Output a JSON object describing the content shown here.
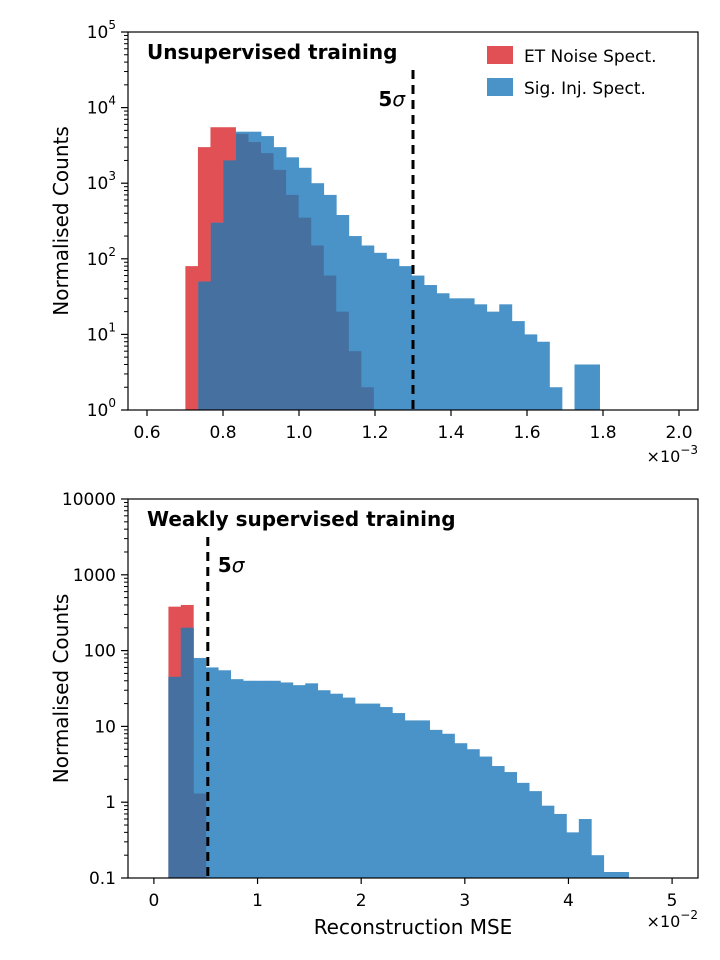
{
  "colors": {
    "noise": "#e05055",
    "signal": "#4a93c8",
    "overlap": "#46709f",
    "threshold": "#000000"
  },
  "chart_data": [
    {
      "type": "histogram",
      "title": "Unsupervised training",
      "ylabel": "Normalised Counts",
      "xlabel": "",
      "yscale": "log",
      "ylim_exp": [
        0,
        5
      ],
      "y_ticks": [
        {
          "value": 1,
          "base": "10",
          "exp": "0"
        },
        {
          "value": 10,
          "base": "10",
          "exp": "1"
        },
        {
          "value": 100,
          "base": "10",
          "exp": "2"
        },
        {
          "value": 1000,
          "base": "10",
          "exp": "3"
        },
        {
          "value": 10000,
          "base": "10",
          "exp": "4"
        },
        {
          "value": 100000,
          "base": "10",
          "exp": "5"
        }
      ],
      "xlim": [
        0.55,
        2.05
      ],
      "x_ticks": [
        {
          "value": 0.6,
          "label": "0.6"
        },
        {
          "value": 0.8,
          "label": "0.8"
        },
        {
          "value": 1.0,
          "label": "1.0"
        },
        {
          "value": 1.2,
          "label": "1.2"
        },
        {
          "value": 1.4,
          "label": "1.4"
        },
        {
          "value": 1.6,
          "label": "1.6"
        },
        {
          "value": 1.8,
          "label": "1.8"
        },
        {
          "value": 2.0,
          "label": "2.0"
        }
      ],
      "x_multiplier": {
        "text": "×10",
        "exp": "−3"
      },
      "threshold": {
        "x": 1.3,
        "label": "5",
        "symbol": "σ"
      },
      "legend_position": "top-right",
      "series": [
        {
          "name": "ET Noise Spect.",
          "color_key": "noise",
          "bin_edges": [
            0.701,
            0.734,
            0.767,
            0.8,
            0.833,
            0.866,
            0.899,
            0.932,
            0.965,
            0.998,
            1.031,
            1.064,
            1.097,
            1.13,
            1.163,
            1.196
          ],
          "counts": [
            80,
            3000,
            5500,
            5500,
            4500,
            3500,
            2500,
            1500,
            700,
            350,
            150,
            60,
            20,
            6,
            2
          ]
        },
        {
          "name": "Sig. Inj. Spect.",
          "color_key": "signal",
          "bin_edges": [
            0.735,
            0.768,
            0.801,
            0.834,
            0.867,
            0.9,
            0.933,
            0.966,
            0.999,
            1.032,
            1.065,
            1.098,
            1.131,
            1.164,
            1.197,
            1.23,
            1.263,
            1.296,
            1.329,
            1.362,
            1.395,
            1.428,
            1.461,
            1.494,
            1.527,
            1.56,
            1.593,
            1.626,
            1.659,
            1.692,
            1.725,
            1.758,
            1.791
          ],
          "counts": [
            50,
            300,
            2000,
            4800,
            4800,
            4200,
            3000,
            2200,
            1600,
            1000,
            700,
            380,
            200,
            150,
            120,
            100,
            80,
            60,
            45,
            35,
            30,
            30,
            25,
            20,
            25,
            15,
            10,
            8,
            2,
            0,
            4,
            4
          ]
        }
      ]
    },
    {
      "type": "histogram",
      "title": "Weakly supervised training",
      "ylabel": "Normalised Counts",
      "xlabel": "Reconstruction MSE",
      "yscale": "log",
      "ylim_exp": [
        -1,
        4
      ],
      "y_ticks": [
        {
          "value": 0.1,
          "label": "0.1"
        },
        {
          "value": 1,
          "label": "1"
        },
        {
          "value": 10,
          "label": "10"
        },
        {
          "value": 100,
          "label": "100"
        },
        {
          "value": 1000,
          "label": "1000"
        },
        {
          "value": 10000,
          "label": "10000"
        }
      ],
      "xlim": [
        -0.25,
        5.25
      ],
      "x_ticks": [
        {
          "value": 0,
          "label": "0"
        },
        {
          "value": 1,
          "label": "1"
        },
        {
          "value": 2,
          "label": "2"
        },
        {
          "value": 3,
          "label": "3"
        },
        {
          "value": 4,
          "label": "4"
        },
        {
          "value": 5,
          "label": "5"
        }
      ],
      "x_multiplier": {
        "text": "×10",
        "exp": "−2"
      },
      "threshold": {
        "x": 0.52,
        "label": "5",
        "symbol": "σ"
      },
      "series": [
        {
          "name": "ET Noise Spect.",
          "color_key": "noise",
          "bin_edges": [
            0.14,
            0.26,
            0.38,
            0.5
          ],
          "counts": [
            380,
            400,
            1.3
          ]
        },
        {
          "name": "Sig. Inj. Spect.",
          "color_key": "signal",
          "bin_edges": [
            0.14,
            0.26,
            0.38,
            0.5,
            0.62,
            0.74,
            0.86,
            0.98,
            1.1,
            1.22,
            1.34,
            1.46,
            1.58,
            1.7,
            1.82,
            1.94,
            2.06,
            2.18,
            2.3,
            2.42,
            2.54,
            2.66,
            2.78,
            2.9,
            3.02,
            3.14,
            3.26,
            3.38,
            3.5,
            3.62,
            3.74,
            3.86,
            3.98,
            4.1,
            4.22,
            4.34,
            4.46,
            4.58
          ],
          "counts": [
            45,
            200,
            80,
            60,
            55,
            42,
            40,
            40,
            40,
            38,
            35,
            37,
            30,
            27,
            24,
            20,
            20,
            18,
            15,
            12,
            12,
            9,
            8,
            6,
            5,
            4,
            3,
            2.5,
            1.8,
            1.4,
            0.9,
            0.7,
            0.4,
            0.6,
            0.2,
            0.12,
            0.12
          ]
        }
      ]
    }
  ]
}
